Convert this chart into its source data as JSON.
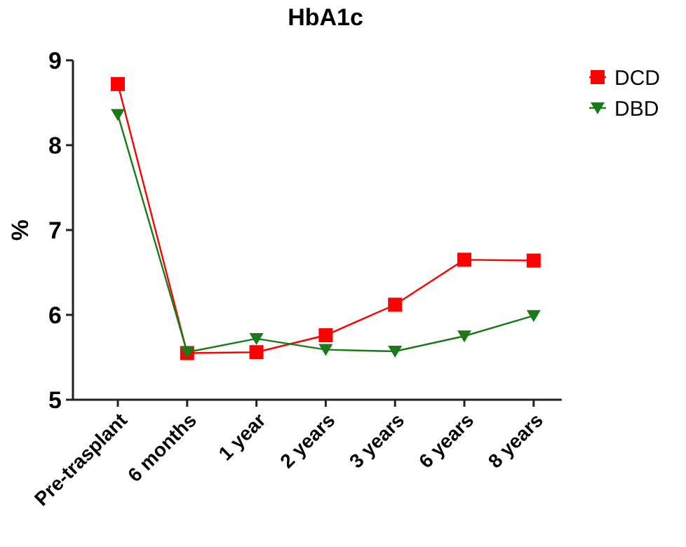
{
  "chart_data": {
    "type": "line",
    "title": "HbA1c",
    "ylabel": "%",
    "categories": [
      "Pre-trasplant",
      "6 months",
      "1 year",
      "2 years",
      "3 years",
      "6 years",
      "8 years"
    ],
    "series": [
      {
        "name": "DCD",
        "color": "#ff0000",
        "marker": "square",
        "values": [
          8.72,
          5.55,
          5.56,
          5.76,
          6.12,
          6.65,
          6.64
        ]
      },
      {
        "name": "DBD",
        "color": "#1a7a1a",
        "marker": "triangle",
        "values": [
          8.36,
          5.56,
          5.72,
          5.59,
          5.57,
          5.75,
          5.99
        ]
      }
    ],
    "ylim": [
      5,
      9
    ],
    "yticks": [
      5,
      6,
      7,
      8,
      9
    ],
    "grid": false,
    "legend": "top right",
    "line_style": "solid"
  }
}
